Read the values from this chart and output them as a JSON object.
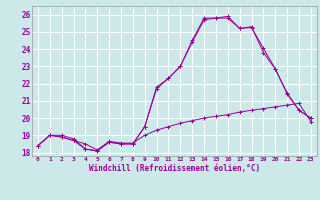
{
  "title": "",
  "xlabel": "Windchill (Refroidissement éolien,°C)",
  "ylabel": "",
  "bg_color": "#cce8e8",
  "line_color": "#990099",
  "grid_color": "#ffffff",
  "xlim": [
    -0.5,
    23.5
  ],
  "ylim": [
    17.8,
    26.5
  ],
  "yticks": [
    18,
    19,
    20,
    21,
    22,
    23,
    24,
    25,
    26
  ],
  "xticks": [
    0,
    1,
    2,
    3,
    4,
    5,
    6,
    7,
    8,
    9,
    10,
    11,
    12,
    13,
    14,
    15,
    16,
    17,
    18,
    19,
    20,
    21,
    22,
    23
  ],
  "line1_x": [
    0,
    1,
    2,
    3,
    4,
    5,
    6,
    7,
    8,
    9,
    10,
    11,
    12,
    13,
    14,
    15,
    16,
    17,
    18,
    19,
    20,
    21,
    22,
    23
  ],
  "line1_y": [
    18.4,
    19.0,
    18.9,
    18.7,
    18.5,
    18.15,
    18.65,
    18.55,
    18.55,
    19.0,
    19.3,
    19.5,
    19.7,
    19.85,
    20.0,
    20.1,
    20.2,
    20.35,
    20.45,
    20.55,
    20.65,
    20.75,
    20.85,
    19.8
  ],
  "line2_x": [
    0,
    1,
    2,
    3,
    4,
    5,
    6,
    7,
    8,
    9,
    10,
    11,
    12,
    13,
    14,
    15,
    16,
    17,
    18,
    19,
    20,
    21,
    22,
    23
  ],
  "line2_y": [
    18.4,
    19.0,
    18.9,
    18.7,
    18.2,
    18.1,
    18.6,
    18.5,
    18.5,
    19.5,
    21.7,
    22.3,
    23.0,
    24.4,
    25.7,
    25.8,
    25.8,
    25.2,
    25.3,
    23.8,
    22.85,
    21.4,
    20.45,
    20.0
  ],
  "line3_x": [
    0,
    1,
    2,
    3,
    4,
    5,
    6,
    7,
    8,
    9,
    10,
    11,
    12,
    13,
    14,
    15,
    16,
    17,
    18,
    19,
    20,
    21,
    22,
    23
  ],
  "line3_y": [
    18.4,
    19.0,
    19.0,
    18.8,
    18.2,
    18.1,
    18.6,
    18.5,
    18.5,
    19.5,
    21.8,
    22.3,
    23.0,
    24.5,
    25.8,
    25.8,
    25.9,
    25.2,
    25.25,
    24.05,
    22.85,
    21.45,
    20.45,
    20.0
  ]
}
